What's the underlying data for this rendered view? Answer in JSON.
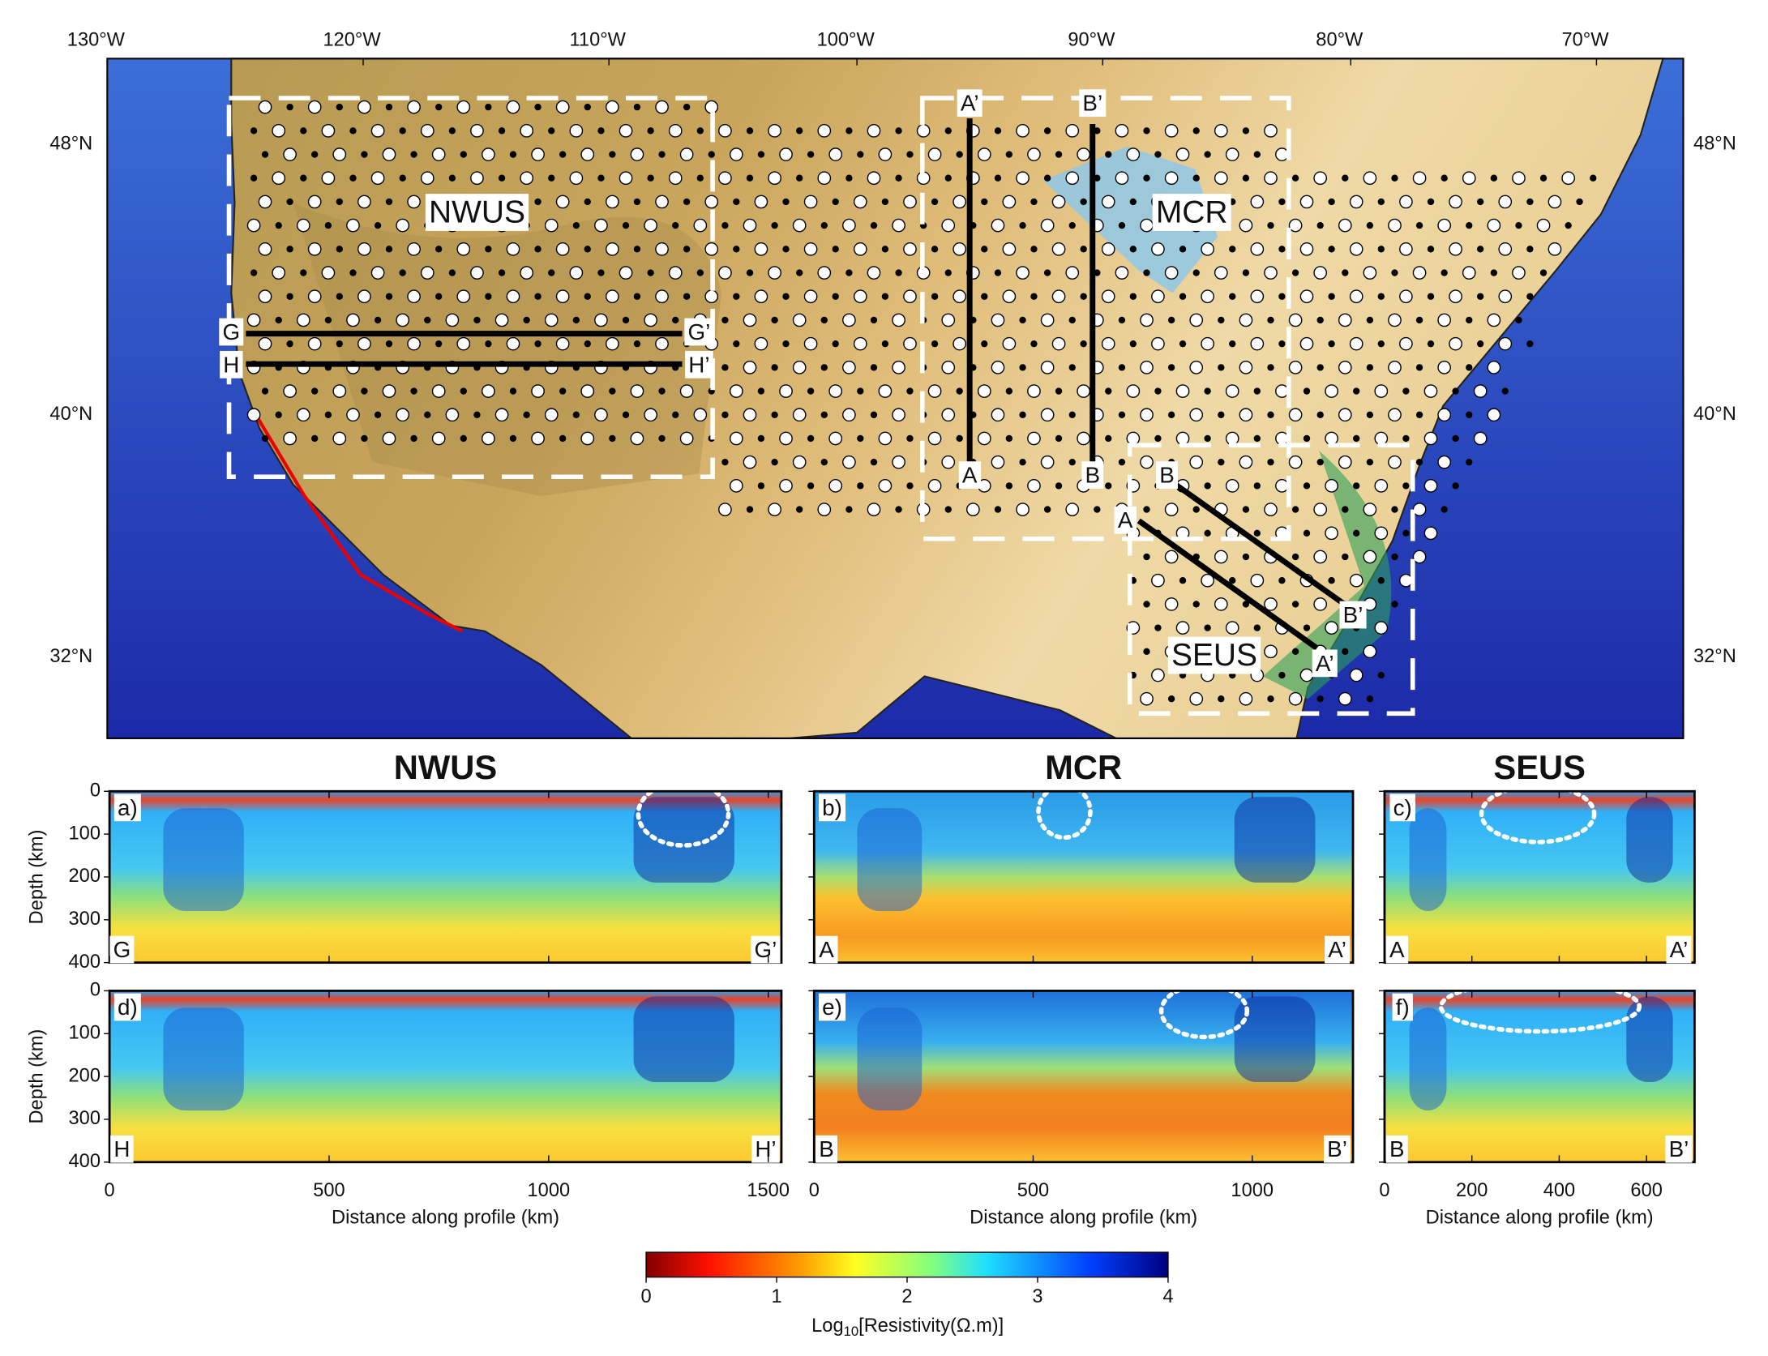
{
  "map": {
    "lon_ticks": [
      "130°W",
      "120°W",
      "110°W",
      "100°W",
      "90°W",
      "80°W",
      "70°W"
    ],
    "lat_ticks": [
      "48°N",
      "40°N",
      "32°N"
    ],
    "regions": [
      "NWUS",
      "MCR",
      "SEUS"
    ],
    "profiles": [
      {
        "start": "G",
        "end": "G’"
      },
      {
        "start": "H",
        "end": "H’"
      },
      {
        "start": "A",
        "end": "A’"
      },
      {
        "start": "B",
        "end": "B’"
      }
    ]
  },
  "panels": [
    {
      "title": "NWUS",
      "xlim": [
        0,
        1530
      ],
      "xticks": [
        0,
        500,
        1000,
        1500
      ],
      "sections": [
        {
          "label": "a)",
          "profile": 0
        },
        {
          "label": "d)",
          "profile": 1
        }
      ]
    },
    {
      "title": "MCR",
      "xlim": [
        0,
        1230
      ],
      "xticks": [
        0,
        500,
        1000
      ],
      "sections": [
        {
          "label": "b)",
          "profile": 2
        },
        {
          "label": "e)",
          "profile": 3
        }
      ]
    },
    {
      "title": "SEUS",
      "xlim": [
        0,
        710
      ],
      "xticks": [
        0,
        200,
        400,
        600
      ],
      "sections": [
        {
          "label": "c)",
          "profile": 2
        },
        {
          "label": "f)",
          "profile": 3
        }
      ]
    }
  ],
  "depth_axis": {
    "label": "Depth (km)",
    "lim": [
      0,
      400
    ],
    "ticks": [
      0,
      100,
      200,
      300,
      400
    ]
  },
  "x_axis_label": "Distance along profile (km)",
  "colorbar": {
    "lim": [
      0,
      4
    ],
    "ticks": [
      0,
      1,
      2,
      3,
      4
    ],
    "label_main": "Log",
    "label_sub": "10",
    "label_rest": "[Resistivity(Ω.m)]"
  }
}
